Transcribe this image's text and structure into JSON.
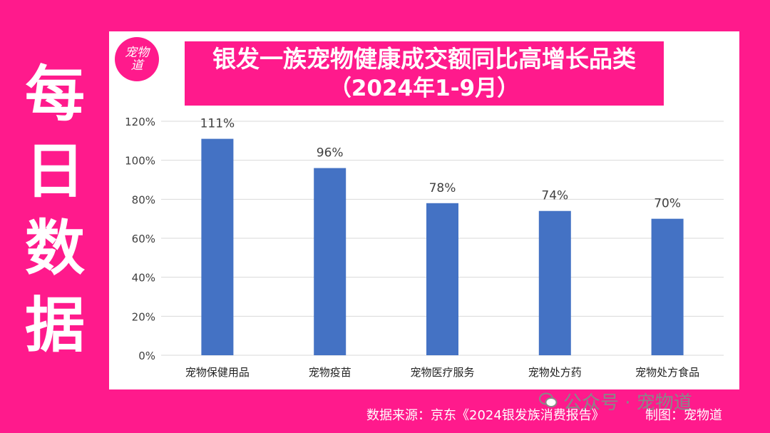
{
  "side_title": [
    "每",
    "日",
    "数",
    "据"
  ],
  "logo_text": "宠物道",
  "title_line1": "银发一族宠物健康成交额同比高增长品类",
  "title_line2": "（2024年1-9月）",
  "footer": {
    "watermark": "公众号 · 宠物道",
    "source": "数据来源：京东《2024银发族消费报告》",
    "maker": "制图：宠物道"
  },
  "colors": {
    "bar": "#4472c4",
    "accent": "#ff1a8c"
  },
  "chart_data": {
    "type": "bar",
    "categories": [
      "宠物保健用品",
      "宠物疫苗",
      "宠物医疗服务",
      "宠物处方药",
      "宠物处方食品"
    ],
    "values": [
      111,
      96,
      78,
      74,
      70
    ],
    "data_labels": [
      "111%",
      "96%",
      "78%",
      "74%",
      "70%"
    ],
    "ylim": [
      0,
      120
    ],
    "yticks": [
      0,
      20,
      40,
      60,
      80,
      100,
      120
    ],
    "ytick_labels": [
      "0%",
      "20%",
      "40%",
      "60%",
      "80%",
      "100%",
      "120%"
    ],
    "grid": true,
    "legend": "none"
  }
}
